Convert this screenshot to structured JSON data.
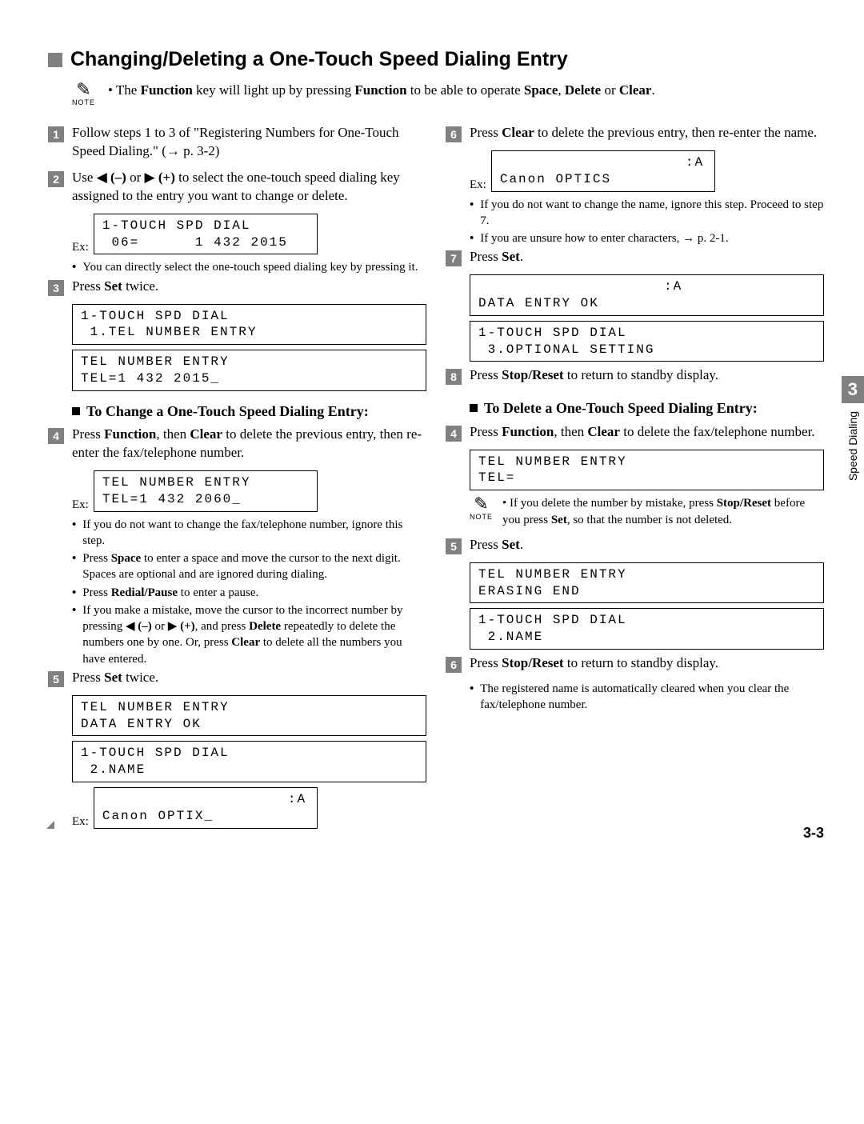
{
  "title": "Changing/Deleting a One-Touch Speed Dialing Entry",
  "top_note_html": "• The <b>Function</b> key will light up by pressing <b>Function</b> to be able to operate <b>Space</b>, <b>Delete</b> or <b>Clear</b>.",
  "note_label": "NOTE",
  "side": {
    "num": "3",
    "text": "Speed Dialing"
  },
  "page_num": "3-3",
  "left": {
    "s1": "Follow steps 1 to 3 of \"Registering Numbers for One-Touch Speed Dialing.\" (→ p. 3-2)",
    "s2_html": "Use ◀ <b>(–)</b> or ▶ <b>(+)</b> to select the one-touch speed dialing key assigned to the entry you want to change or delete.",
    "d2a": "1-TOUCH SPD DIAL\n 06=      1 432 2015",
    "b2": "You can directly select the one-touch speed dialing key by pressing it.",
    "s3_html": "Press <b>Set</b> twice.",
    "d3a": "1-TOUCH SPD DIAL\n 1.TEL NUMBER ENTRY",
    "d3b": "TEL NUMBER ENTRY\nTEL=1 432 2015_",
    "sub_change": "To Change a One-Touch Speed Dialing Entry:",
    "s4_html": "Press <b>Function</b>, then <b>Clear</b> to delete the previous entry, then re-enter the fax/telephone number.",
    "d4": "TEL NUMBER ENTRY\nTEL=1 432 2060_",
    "b4a": "If you do not want to change the fax/telephone number, ignore this step.",
    "b4b_html": "Press <b>Space</b> to enter a space and move the cursor to the next digit. Spaces are optional and are ignored during dialing.",
    "b4c_html": "Press <b>Redial/Pause</b> to enter a pause.",
    "b4d_html": "If you make a mistake, move the cursor to the incorrect number by pressing ◀ <b>(–)</b> or ▶ <b>(+)</b>, and press <b>Delete</b> repeatedly to delete the numbers one by one. Or, press <b>Clear</b> to delete all the numbers you have entered.",
    "s5_html": "Press <b>Set</b> twice.",
    "d5a": "TEL NUMBER ENTRY\nDATA ENTRY OK",
    "d5b": "1-TOUCH SPD DIAL\n 2.NAME",
    "d5c": "                    :A\nCanon OPTIX_"
  },
  "right": {
    "s6_html": "Press <b>Clear</b> to delete the previous entry, then re-enter the name.",
    "d6": "                    :A\nCanon OPTICS",
    "b6a": "If you do not want to change the name, ignore this step. Proceed to step 7.",
    "b6b": "If you are unsure how to enter characters, → p. 2-1.",
    "s7_html": "Press <b>Set</b>.",
    "d7a": "                    :A\nDATA ENTRY OK",
    "d7b": "1-TOUCH SPD DIAL\n 3.OPTIONAL SETTING",
    "s8_html": "Press <b>Stop/Reset</b> to return to standby display.",
    "sub_delete": "To Delete a One-Touch Speed Dialing Entry:",
    "s4b_html": "Press <b>Function</b>, then <b>Clear</b> to delete the fax/telephone number.",
    "d4b": "TEL NUMBER ENTRY\nTEL=",
    "note4_html": "If you delete the number by mistake, press <b>Stop/Reset</b> before you press <b>Set</b>, so that the number is not deleted.",
    "s5b_html": "Press <b>Set</b>.",
    "d5ba": "TEL NUMBER ENTRY\nERASING END",
    "d5bb": "1-TOUCH SPD DIAL\n 2.NAME",
    "s6b_html": "Press <b>Stop/Reset</b> to return to standby display.",
    "b6b2": "The registered name is automatically cleared when you clear the fax/telephone number."
  },
  "ex": "Ex:"
}
